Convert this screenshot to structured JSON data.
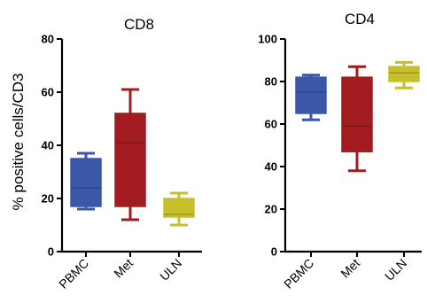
{
  "ylabel": "% positive cells/CD3",
  "colors": {
    "PBMC": "#3a57a8",
    "Met": "#a21c1f",
    "ULN": "#c8c02a"
  },
  "chart_data": [
    {
      "type": "box",
      "title": "CD8",
      "categories": [
        "PBMC",
        "Met",
        "ULN"
      ],
      "ylim": [
        0,
        80
      ],
      "yticks": [
        0,
        20,
        40,
        60,
        80
      ],
      "boxes": [
        {
          "category": "PBMC",
          "min": 16,
          "q1": 17,
          "median": 24,
          "q3": 35,
          "max": 37
        },
        {
          "category": "Met",
          "min": 12,
          "q1": 17,
          "median": 41,
          "q3": 52,
          "max": 61
        },
        {
          "category": "ULN",
          "min": 10,
          "q1": 13,
          "median": 14,
          "q3": 20,
          "max": 22
        }
      ]
    },
    {
      "type": "box",
      "title": "CD4",
      "categories": [
        "PBMC",
        "Met",
        "ULN"
      ],
      "ylim": [
        0,
        100
      ],
      "yticks": [
        0,
        20,
        40,
        60,
        80,
        100
      ],
      "boxes": [
        {
          "category": "PBMC",
          "min": 62,
          "q1": 65,
          "median": 75,
          "q3": 82,
          "max": 83
        },
        {
          "category": "Met",
          "min": 38,
          "q1": 47,
          "median": 59,
          "q3": 82,
          "max": 87
        },
        {
          "category": "ULN",
          "min": 77,
          "q1": 80,
          "median": 84,
          "q3": 87,
          "max": 89
        }
      ]
    }
  ]
}
